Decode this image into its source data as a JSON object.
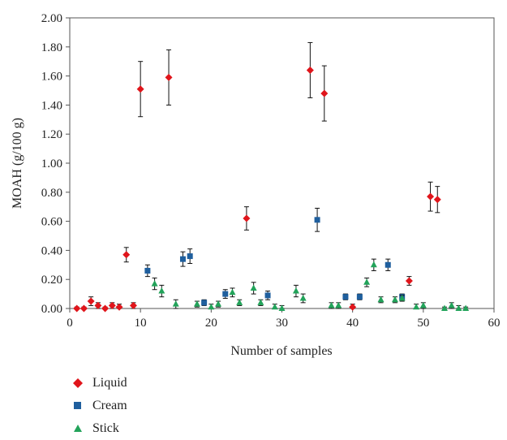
{
  "chart_data": {
    "type": "scatter",
    "xlabel": "Number of samples",
    "ylabel": "MOAH (g/100 g)",
    "xlim": [
      0,
      60
    ],
    "ylim": [
      0,
      2.0
    ],
    "x_ticks": [
      "0",
      "10",
      "20",
      "30",
      "40",
      "50",
      "60"
    ],
    "y_ticks": [
      "0.00",
      "0.20",
      "0.40",
      "0.60",
      "0.80",
      "1.00",
      "1.20",
      "1.40",
      "1.60",
      "1.80",
      "2.00"
    ],
    "grid": false,
    "legend_position": "bottom-left",
    "series": [
      {
        "name": "Liquid",
        "color": "#e0151b",
        "marker": "diamond",
        "points": [
          {
            "x": 1,
            "y": 0.0,
            "err": 0.01
          },
          {
            "x": 2,
            "y": 0.0,
            "err": 0.01
          },
          {
            "x": 3,
            "y": 0.05,
            "err": 0.03
          },
          {
            "x": 4,
            "y": 0.02,
            "err": 0.02
          },
          {
            "x": 5,
            "y": 0.0,
            "err": 0.01
          },
          {
            "x": 6,
            "y": 0.02,
            "err": 0.02
          },
          {
            "x": 7,
            "y": 0.01,
            "err": 0.02
          },
          {
            "x": 8,
            "y": 0.37,
            "err": 0.05
          },
          {
            "x": 9,
            "y": 0.02,
            "err": 0.02
          },
          {
            "x": 10,
            "y": 1.51,
            "err": 0.19
          },
          {
            "x": 14,
            "y": 1.59,
            "err": 0.19
          },
          {
            "x": 25,
            "y": 0.62,
            "err": 0.08
          },
          {
            "x": 34,
            "y": 1.64,
            "err": 0.19
          },
          {
            "x": 36,
            "y": 1.48,
            "err": 0.19
          },
          {
            "x": 40,
            "y": 0.01,
            "err": 0.02
          },
          {
            "x": 48,
            "y": 0.19,
            "err": 0.03
          },
          {
            "x": 51,
            "y": 0.77,
            "err": 0.1
          },
          {
            "x": 52,
            "y": 0.75,
            "err": 0.09
          }
        ]
      },
      {
        "name": "Cream",
        "color": "#1f5f9e",
        "marker": "square",
        "points": [
          {
            "x": 11,
            "y": 0.26,
            "err": 0.04
          },
          {
            "x": 16,
            "y": 0.34,
            "err": 0.05
          },
          {
            "x": 17,
            "y": 0.36,
            "err": 0.05
          },
          {
            "x": 19,
            "y": 0.04,
            "err": 0.02
          },
          {
            "x": 22,
            "y": 0.1,
            "err": 0.03
          },
          {
            "x": 28,
            "y": 0.09,
            "err": 0.03
          },
          {
            "x": 35,
            "y": 0.61,
            "err": 0.08
          },
          {
            "x": 39,
            "y": 0.08,
            "err": 0.02
          },
          {
            "x": 41,
            "y": 0.08,
            "err": 0.02
          },
          {
            "x": 45,
            "y": 0.3,
            "err": 0.04
          },
          {
            "x": 47,
            "y": 0.08,
            "err": 0.02
          }
        ]
      },
      {
        "name": "Stick",
        "color": "#22a35a",
        "marker": "triangle",
        "points": [
          {
            "x": 12,
            "y": 0.17,
            "err": 0.04
          },
          {
            "x": 13,
            "y": 0.12,
            "err": 0.04
          },
          {
            "x": 15,
            "y": 0.03,
            "err": 0.03
          },
          {
            "x": 18,
            "y": 0.03,
            "err": 0.02
          },
          {
            "x": 20,
            "y": 0.01,
            "err": 0.02
          },
          {
            "x": 21,
            "y": 0.03,
            "err": 0.02
          },
          {
            "x": 23,
            "y": 0.11,
            "err": 0.03
          },
          {
            "x": 24,
            "y": 0.04,
            "err": 0.02
          },
          {
            "x": 26,
            "y": 0.14,
            "err": 0.04
          },
          {
            "x": 27,
            "y": 0.04,
            "err": 0.02
          },
          {
            "x": 29,
            "y": 0.01,
            "err": 0.02
          },
          {
            "x": 30,
            "y": 0.0,
            "err": 0.02
          },
          {
            "x": 32,
            "y": 0.12,
            "err": 0.04
          },
          {
            "x": 33,
            "y": 0.07,
            "err": 0.03
          },
          {
            "x": 37,
            "y": 0.02,
            "err": 0.02
          },
          {
            "x": 38,
            "y": 0.02,
            "err": 0.02
          },
          {
            "x": 42,
            "y": 0.18,
            "err": 0.03
          },
          {
            "x": 43,
            "y": 0.3,
            "err": 0.04
          },
          {
            "x": 44,
            "y": 0.06,
            "err": 0.02
          },
          {
            "x": 46,
            "y": 0.06,
            "err": 0.02
          },
          {
            "x": 47,
            "y": 0.07,
            "err": 0.02
          },
          {
            "x": 49,
            "y": 0.01,
            "err": 0.02
          },
          {
            "x": 50,
            "y": 0.02,
            "err": 0.02
          },
          {
            "x": 53,
            "y": 0.0,
            "err": 0.01
          },
          {
            "x": 54,
            "y": 0.02,
            "err": 0.02
          },
          {
            "x": 55,
            "y": 0.0,
            "err": 0.02
          },
          {
            "x": 56,
            "y": 0.0,
            "err": 0.01
          }
        ]
      }
    ]
  }
}
